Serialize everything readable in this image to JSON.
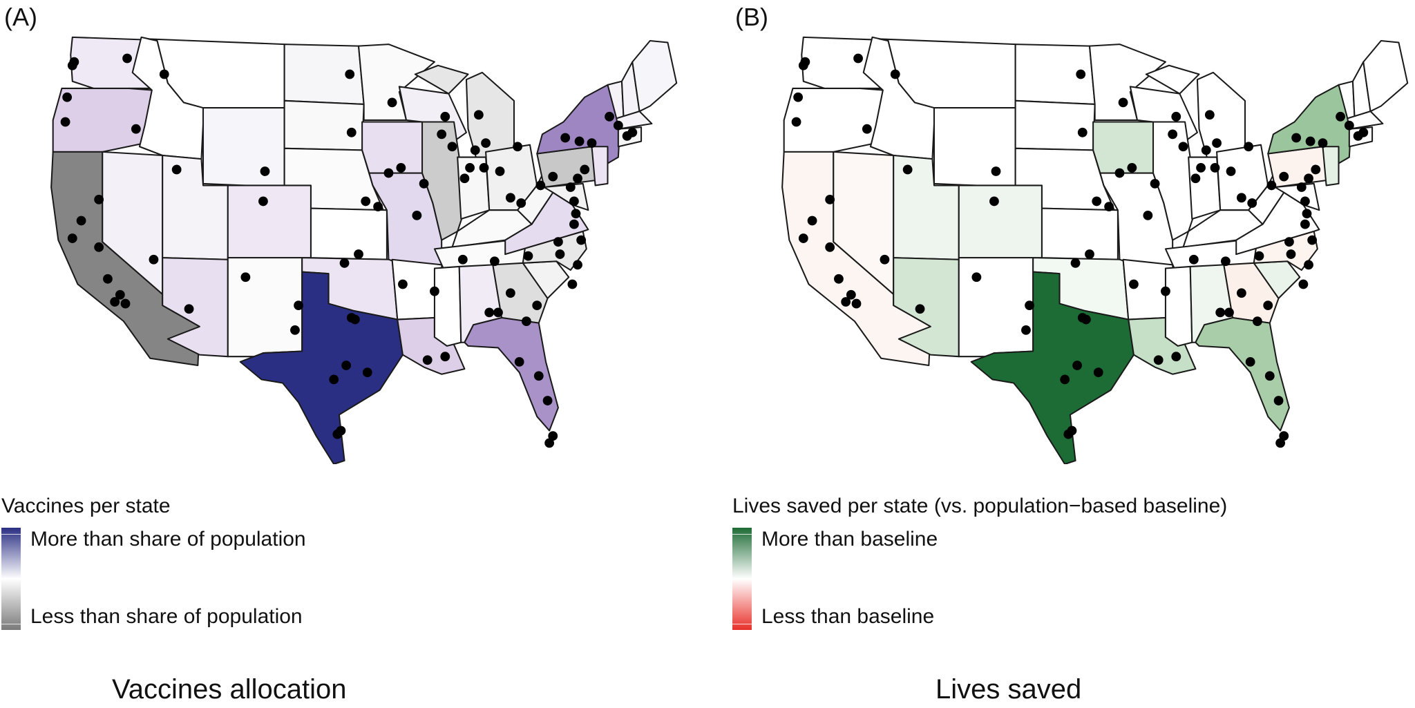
{
  "panels": [
    {
      "tag": "(A)",
      "legend_title": "Vaccines per state",
      "legend_high": "More than share of population",
      "legend_low": "Less than share of population",
      "scale_colors": {
        "high": "#2a2f83",
        "mid": "#ffffff",
        "low": "#7a7a7a"
      },
      "caption": "Vaccines allocation",
      "state_colors": {
        "WA": "#efe9f5",
        "OR": "#ddcfe8",
        "CA": "#858585",
        "NV": "#f4f0f8",
        "ID": "#ffffff",
        "MT": "#ffffff",
        "WY": "#f5f5fa",
        "UT": "#f5f2f8",
        "AZ": "#e8dff0",
        "CO": "#efe8f4",
        "NM": "#fbfbfb",
        "ND": "#f6f6f9",
        "SD": "#f9f9f9",
        "NE": "#fbfbfb",
        "KS": "#ffffff",
        "OK": "#ece4f2",
        "TX": "#2a2f83",
        "MN": "#fafafa",
        "IA": "#e8dff0",
        "MO": "#e3d9ee",
        "AR": "#ffffff",
        "LA": "#ddcfe8",
        "WI": "#f3eff7",
        "IL": "#cccccc",
        "MI": "#e6e6e6",
        "IN": "#f7f7f7",
        "OH": "#f0f0f0",
        "KY": "#fafafa",
        "TN": "#fbfbfb",
        "MS": "#ffffff",
        "AL": "#f0ebf4",
        "GA": "#dedede",
        "FL": "#a892c8",
        "SC": "#f3f3f3",
        "NC": "#e8e8e8",
        "VA": "#e6dcef",
        "WV": "#f7f7f7",
        "PA": "#c8c8c8",
        "NY": "#9d86c2",
        "VT": "#f5f3f8",
        "NH": "#f5f3f8",
        "ME": "#f5f5fa",
        "MA": "#f5f3f8",
        "NJ": "#ece4f2",
        "MD": "#f2f2f2",
        "CT": "#f5f5f5"
      }
    },
    {
      "tag": "(B)",
      "legend_title": "Lives saved per state (vs. population−based baseline)",
      "legend_high": "More than baseline",
      "legend_low": "Less than baseline",
      "scale_colors": {
        "high": "#1d6b35",
        "mid": "#ffffff",
        "low": "#e8302a"
      },
      "caption": "Lives saved",
      "state_colors": {
        "WA": "#ffffff",
        "OR": "#ffffff",
        "CA": "#fdf5f1",
        "NV": "#fdf8f5",
        "ID": "#ffffff",
        "MT": "#ffffff",
        "WY": "#ffffff",
        "UT": "#eef5ef",
        "AZ": "#d3e6d4",
        "CO": "#eef5ef",
        "NM": "#ffffff",
        "ND": "#ffffff",
        "SD": "#ffffff",
        "NE": "#ffffff",
        "KS": "#ffffff",
        "OK": "#f2f8f2",
        "TX": "#1d6b35",
        "MN": "#ffffff",
        "IA": "#d3e6d4",
        "MO": "#ffffff",
        "AR": "#ffffff",
        "LA": "#c6dfc7",
        "WI": "#ffffff",
        "IL": "#ffffff",
        "MI": "#ffffff",
        "IN": "#ffffff",
        "OH": "#ffffff",
        "KY": "#ffffff",
        "TN": "#ffffff",
        "MS": "#ffffff",
        "AL": "#eff6ef",
        "GA": "#fcf0ea",
        "FL": "#a9cda9",
        "SC": "#eaf3ea",
        "NC": "#fdf4f0",
        "VA": "#ffffff",
        "WV": "#ffffff",
        "PA": "#fcf2ee",
        "NY": "#9bc59c",
        "VT": "#ffffff",
        "NH": "#ffffff",
        "ME": "#ffffff",
        "MA": "#ffffff",
        "NJ": "#e6f1e6",
        "MD": "#ffffff",
        "CT": "#ffffff"
      }
    }
  ]
}
